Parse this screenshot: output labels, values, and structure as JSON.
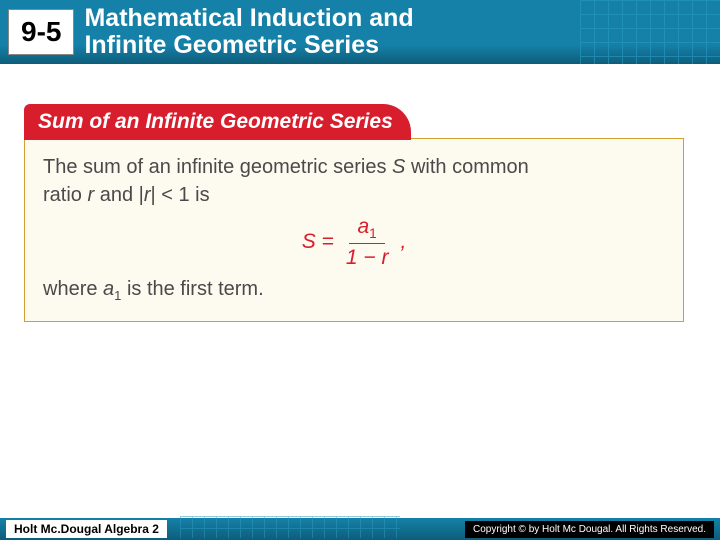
{
  "header": {
    "section_number": "9-5",
    "title_line1": "Mathematical Induction and",
    "title_line2": "Infinite Geometric Series",
    "bg_color": "#1581a8",
    "text_color": "#ffffff"
  },
  "theorem": {
    "tab_label": "Sum of an Infinite Geometric Series",
    "tab_bg": "#d81e2c",
    "box_bg": "#fdfaf0",
    "box_border": "#d0a030",
    "intro_part1": "The sum of an infinite geometric series ",
    "intro_S": "S",
    "intro_part2": " with common",
    "intro_line2a": "ratio ",
    "intro_r": "r",
    "intro_line2b": " and |",
    "intro_r2": "r",
    "intro_line2c": "| < 1 is",
    "formula": {
      "lhs": "S",
      "equals": " = ",
      "numerator_a": "a",
      "numerator_sub": "1",
      "denominator": "1 − r",
      "trailing": ","
    },
    "outro_part1": "where ",
    "outro_a": "a",
    "outro_sub": "1",
    "outro_part2": " is the first term."
  },
  "footer": {
    "left": "Holt Mc.Dougal Algebra 2",
    "right": "Copyright © by Holt Mc Dougal. All Rights Reserved."
  }
}
